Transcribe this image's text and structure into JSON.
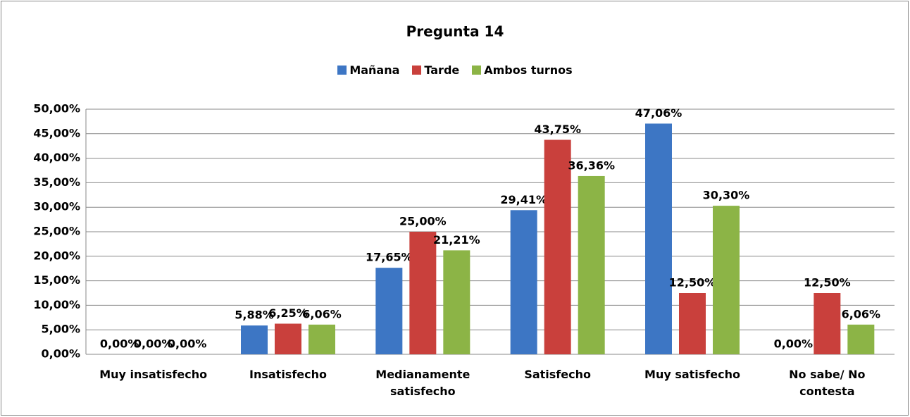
{
  "chart_data": {
    "type": "bar",
    "title": "Pregunta 14",
    "categories": [
      "Muy insatisfecho",
      "Insatisfecho",
      "Medianamente satisfecho",
      "Satisfecho",
      "Muy satisfecho",
      "No sabe/ No contesta"
    ],
    "series": [
      {
        "name": "Mañana",
        "color": "#3d76c4",
        "values": [
          0,
          5.88,
          17.65,
          29.41,
          47.06,
          0
        ],
        "value_labels": [
          "0,00%",
          "5,88%",
          "17,65%",
          "29,41%",
          "47,06%",
          "0,00%"
        ]
      },
      {
        "name": "Tarde",
        "color": "#c9403c",
        "values": [
          0,
          6.25,
          25,
          43.75,
          12.5,
          12.5
        ],
        "value_labels": [
          "0,00%",
          "6,25%",
          "25,00%",
          "43,75%",
          "12,50%",
          "12,50%"
        ]
      },
      {
        "name": "Ambos turnos",
        "color": "#8cb446",
        "values": [
          0,
          6.06,
          21.21,
          36.36,
          30.3,
          6.06
        ],
        "value_labels": [
          "0,00%",
          "6,06%",
          "21,21%",
          "36,36%",
          "30,30%",
          "6,06%"
        ]
      }
    ],
    "ylim": [
      0,
      50
    ],
    "yticks": [
      {
        "value": 0,
        "label": "0,00%"
      },
      {
        "value": 5,
        "label": "5,00%"
      },
      {
        "value": 10,
        "label": "10,00%"
      },
      {
        "value": 15,
        "label": "15,00%"
      },
      {
        "value": 20,
        "label": "20,00%"
      },
      {
        "value": 25,
        "label": "25,00%"
      },
      {
        "value": 30,
        "label": "30,00%"
      },
      {
        "value": 35,
        "label": "35,00%"
      },
      {
        "value": 40,
        "label": "40,00%"
      },
      {
        "value": 45,
        "label": "45,00%"
      },
      {
        "value": 50,
        "label": "50,00%"
      }
    ],
    "grid": true,
    "legend": "top"
  }
}
